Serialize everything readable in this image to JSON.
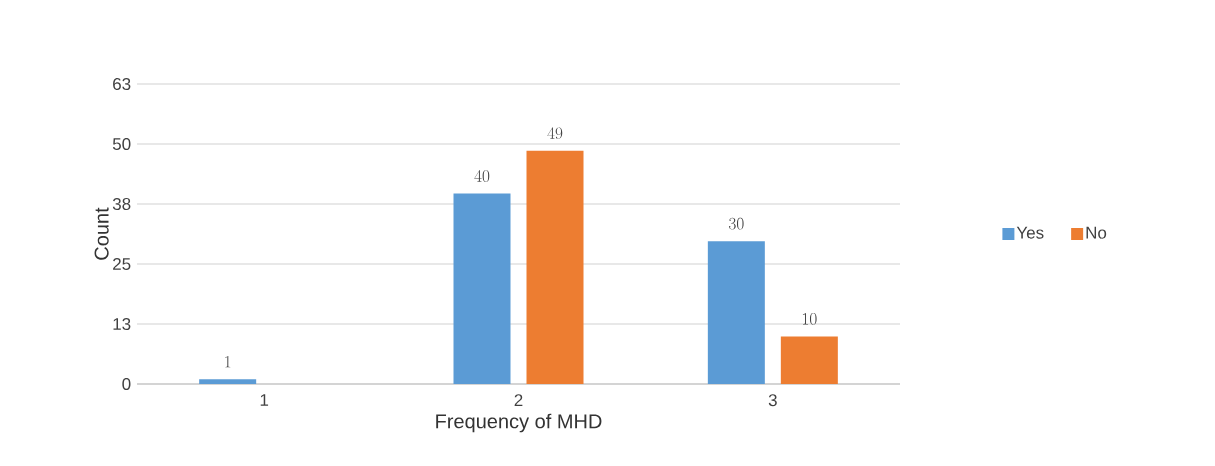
{
  "chart_data": {
    "type": "bar",
    "xlabel": "Frequency of MHD",
    "ylabel": "Count",
    "categories": [
      "1",
      "2",
      "3"
    ],
    "series": [
      {
        "name": "Yes",
        "color": "#5b9bd5",
        "values": [
          1,
          40,
          30
        ]
      },
      {
        "name": "No",
        "color": "#ed7d31",
        "values": [
          null,
          49,
          10
        ]
      }
    ],
    "ylim": [
      0,
      63
    ],
    "yticks": [
      0,
      {
        "value": 12.6,
        "label": "13"
      },
      {
        "value": 25.2,
        "label": "25"
      },
      {
        "value": 37.8,
        "label": "38"
      },
      {
        "value": 50.4,
        "label": "50"
      },
      63
    ],
    "grid": "y",
    "legend": "right",
    "data_labels": true
  }
}
